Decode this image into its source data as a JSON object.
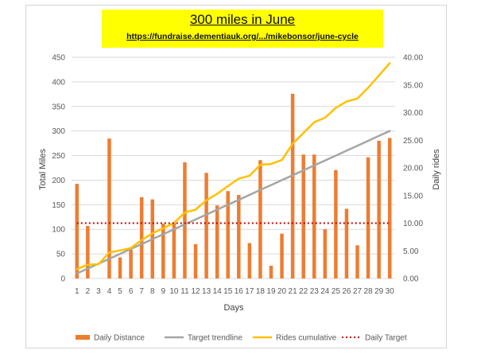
{
  "chart_data": {
    "type": "bar",
    "title": "300 miles in June",
    "subtitle": "https://fundraise.dementiauk.org/.../mikebonsor/june-cycle",
    "xlabel": "Days",
    "ylabel_left": "Total Miles",
    "ylabel_right": "Daily rides",
    "ylim_left": [
      0,
      450
    ],
    "ylim_right": [
      0,
      40
    ],
    "yticks_left": [
      "0",
      "50",
      "100",
      "150",
      "200",
      "250",
      "300",
      "350",
      "400",
      "450"
    ],
    "yticks_right": [
      "0.00",
      "5.00",
      "10.00",
      "15.00",
      "20.00",
      "25.00",
      "30.00",
      "35.00",
      "40.00"
    ],
    "categories": [
      "1",
      "2",
      "3",
      "4",
      "5",
      "6",
      "7",
      "8",
      "9",
      "10",
      "11",
      "12",
      "13",
      "14",
      "15",
      "16",
      "17",
      "18",
      "19",
      "20",
      "21",
      "22",
      "23",
      "24",
      "25",
      "26",
      "27",
      "28",
      "29",
      "30"
    ],
    "legend_position": "bottom",
    "series": [
      {
        "name": "Daily Distance",
        "type": "bar",
        "axis": "right",
        "color": "#ed7d31",
        "values": [
          17.1,
          9.5,
          0,
          25.3,
          3.8,
          5.2,
          14.7,
          14.3,
          9.9,
          10.1,
          21.0,
          6.2,
          19.1,
          13.2,
          15.8,
          15.1,
          6.4,
          21.4,
          2.3,
          8.1,
          33.4,
          22.4,
          22.4,
          8.9,
          19.6,
          12.6,
          6.0,
          21.9,
          24.9,
          25.4
        ]
      },
      {
        "name": "Target trendline",
        "type": "line",
        "axis": "left",
        "color": "#a5a5a5",
        "values": [
          10,
          20,
          30,
          40,
          50,
          60,
          70,
          80,
          90,
          100,
          110,
          120,
          130,
          140,
          150,
          160,
          170,
          180,
          190,
          200,
          210,
          220,
          230,
          240,
          250,
          260,
          270,
          280,
          290,
          300
        ]
      },
      {
        "name": "Rides cumulative",
        "type": "line",
        "axis": "left",
        "color": "#ffc000",
        "values": [
          19,
          28,
          29,
          53,
          57,
          62,
          78,
          92,
          102,
          113,
          134,
          140,
          159,
          172,
          188,
          203,
          209,
          231,
          233,
          241,
          274,
          296,
          318,
          327,
          347,
          360,
          366,
          388,
          413,
          438
        ]
      },
      {
        "name": "Daily Target",
        "type": "dotted-line",
        "axis": "right",
        "color": "#c00000",
        "values": [
          10,
          10,
          10,
          10,
          10,
          10,
          10,
          10,
          10,
          10,
          10,
          10,
          10,
          10,
          10,
          10,
          10,
          10,
          10,
          10,
          10,
          10,
          10,
          10,
          10,
          10,
          10,
          10,
          10,
          10
        ]
      }
    ]
  }
}
